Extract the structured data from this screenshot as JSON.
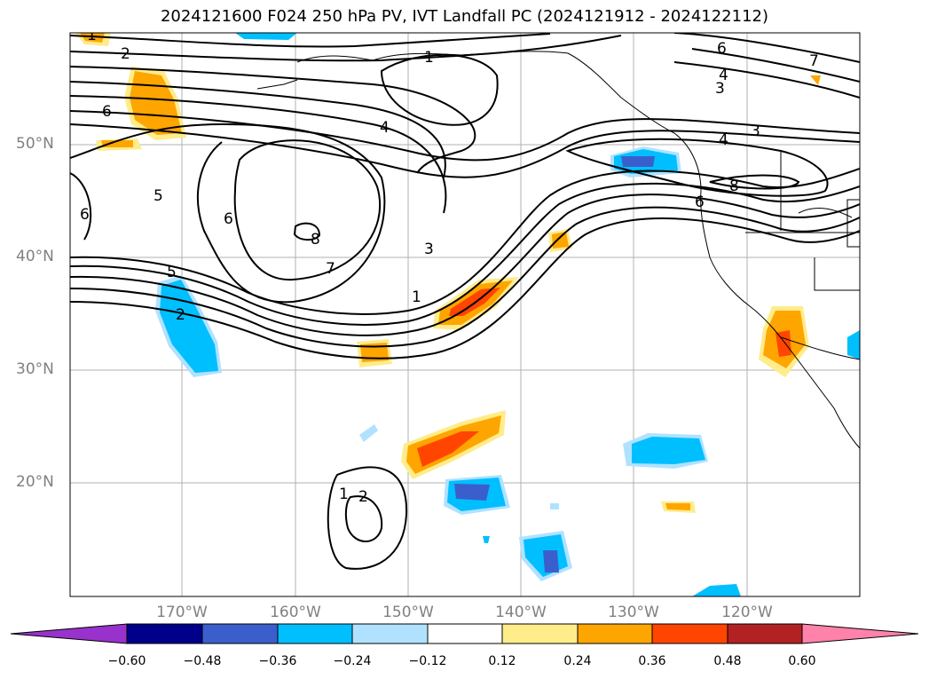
{
  "title": "2024121600 F024 250 hPa PV, IVT Landfall PC (2024121912 - 2024122112)",
  "lat_labels": [
    "50°N",
    "40°N",
    "30°N",
    "20°N"
  ],
  "lon_labels": [
    "170°W",
    "160°W",
    "150°W",
    "140°W",
    "130°W",
    "120°W"
  ],
  "colorbar": {
    "ticks": [
      "−0.60",
      "−0.48",
      "−0.36",
      "−0.24",
      "−0.12",
      "0.12",
      "0.24",
      "0.36",
      "0.48",
      "0.60"
    ],
    "colors": [
      "#9932cc",
      "#00008b",
      "#3a5fcd",
      "#00bfff",
      "#b0e2ff",
      "#ffffff",
      "#ffec8b",
      "#ffa500",
      "#ff4500",
      "#b22222",
      "#ff82ab"
    ]
  },
  "contour_labels": [
    "1",
    "2",
    "6",
    "4",
    "5",
    "7",
    "3",
    "8"
  ]
}
